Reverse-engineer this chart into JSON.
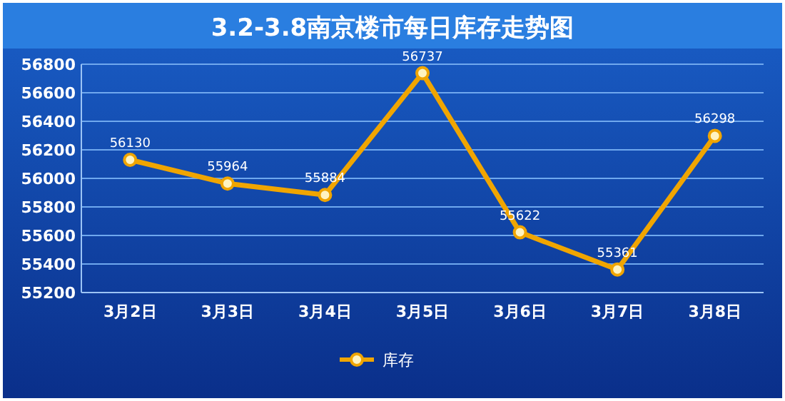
{
  "chart_data": {
    "type": "line",
    "title": "3.2-3.8南京楼市每日库存走势图",
    "categories": [
      "3月2日",
      "3月3日",
      "3月4日",
      "3月5日",
      "3月6日",
      "3月7日",
      "3月8日"
    ],
    "series": [
      {
        "name": "库存",
        "color": "#f0a500",
        "values": [
          56130,
          55964,
          55884,
          56737,
          55622,
          55361,
          56298
        ]
      }
    ],
    "ylim": [
      55200,
      56800
    ],
    "yticks": [
      55200,
      55400,
      55600,
      55800,
      56000,
      56200,
      56400,
      56600,
      56800
    ],
    "grid": "y",
    "legend": "bottom",
    "marker": "circle",
    "line_style": "solid",
    "data_labels": true
  }
}
